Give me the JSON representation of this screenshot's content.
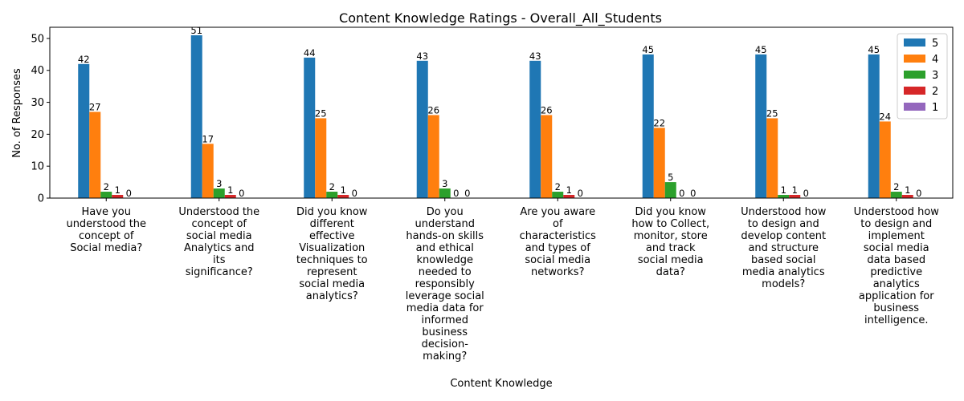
{
  "chart_data": {
    "type": "bar",
    "title": "Content Knowledge Ratings - Overall_All_Students",
    "xlabel": "Content Knowledge",
    "ylabel": "No. of Responses",
    "ylim": [
      0,
      53.5
    ],
    "yticks": [
      0,
      10,
      20,
      30,
      40,
      50
    ],
    "grid": false,
    "legend_position": "top-right",
    "categories": [
      [
        "Have you",
        "understood the",
        "concept of",
        "Social media?"
      ],
      [
        "Understood the",
        "concept of",
        "social media",
        "Analytics and",
        "its",
        "significance?"
      ],
      [
        "Did you know",
        "different",
        "effective",
        "Visualization",
        "techniques to",
        "represent",
        "social media",
        "analytics?"
      ],
      [
        "Do you",
        "understand",
        "hands-on skills",
        "and ethical",
        "knowledge",
        "needed to",
        "responsibly",
        "leverage social",
        "media data for",
        "informed",
        "business",
        "decision-",
        "making?"
      ],
      [
        "Are you aware",
        "of",
        "characteristics",
        "and types of",
        "social media",
        "networks?"
      ],
      [
        "Did you know",
        "how to Collect,",
        "monitor, store",
        "and track",
        "social media",
        "data?"
      ],
      [
        "Understood how",
        "to design and",
        "develop content",
        "and structure",
        "based social",
        "media analytics",
        "models?"
      ],
      [
        "Understood how",
        "to design and",
        "implement",
        "social media",
        "data based",
        "predictive",
        "analytics",
        "application for",
        "business",
        "intelligence."
      ]
    ],
    "series": [
      {
        "name": "5",
        "color": "#1f77b4",
        "values": [
          42,
          51,
          44,
          43,
          43,
          45,
          45,
          45
        ]
      },
      {
        "name": "4",
        "color": "#ff7f0e",
        "values": [
          27,
          17,
          25,
          26,
          26,
          22,
          25,
          24
        ]
      },
      {
        "name": "3",
        "color": "#2ca02c",
        "values": [
          2,
          3,
          2,
          3,
          2,
          5,
          1,
          2
        ]
      },
      {
        "name": "2",
        "color": "#d62728",
        "values": [
          1,
          1,
          1,
          0,
          1,
          0,
          1,
          1
        ]
      },
      {
        "name": "1",
        "color": "#9467bd",
        "values": [
          0,
          0,
          0,
          0,
          0,
          0,
          0,
          0
        ]
      }
    ]
  }
}
